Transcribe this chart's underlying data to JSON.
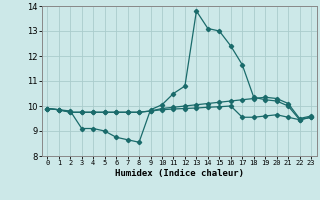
{
  "title": "",
  "xlabel": "Humidex (Indice chaleur)",
  "ylabel": "",
  "xlim": [
    -0.5,
    23.5
  ],
  "ylim": [
    8,
    14
  ],
  "yticks": [
    8,
    9,
    10,
    11,
    12,
    13,
    14
  ],
  "xticks": [
    0,
    1,
    2,
    3,
    4,
    5,
    6,
    7,
    8,
    9,
    10,
    11,
    12,
    13,
    14,
    15,
    16,
    17,
    18,
    19,
    20,
    21,
    22,
    23
  ],
  "background_color": "#cce8e8",
  "grid_color": "#aacccc",
  "line_color": "#1a6b6b",
  "line1_x": [
    0,
    1,
    2,
    3,
    4,
    5,
    6,
    7,
    8,
    9,
    10,
    11,
    12,
    13,
    14,
    15,
    16,
    17,
    18,
    19,
    20,
    21,
    22,
    23
  ],
  "line1_y": [
    9.9,
    9.85,
    9.8,
    9.1,
    9.1,
    9.0,
    8.75,
    8.65,
    8.55,
    9.85,
    10.05,
    10.5,
    10.8,
    13.8,
    13.1,
    13.0,
    12.4,
    11.65,
    10.35,
    10.25,
    10.2,
    10.0,
    9.45,
    9.55
  ],
  "line2_x": [
    0,
    1,
    2,
    3,
    4,
    5,
    6,
    7,
    8,
    9,
    10,
    11,
    12,
    13,
    14,
    15,
    16,
    17,
    18,
    19,
    20,
    21,
    22,
    23
  ],
  "line2_y": [
    9.9,
    9.85,
    9.75,
    9.75,
    9.75,
    9.75,
    9.75,
    9.75,
    9.75,
    9.8,
    9.9,
    9.95,
    10.0,
    10.05,
    10.1,
    10.15,
    10.2,
    10.25,
    10.3,
    10.35,
    10.3,
    10.1,
    9.5,
    9.6
  ],
  "line3_x": [
    0,
    1,
    2,
    3,
    4,
    5,
    6,
    7,
    8,
    9,
    10,
    11,
    12,
    13,
    14,
    15,
    16,
    17,
    18,
    19,
    20,
    21,
    22,
    23
  ],
  "line3_y": [
    9.9,
    9.85,
    9.75,
    9.75,
    9.75,
    9.75,
    9.75,
    9.75,
    9.75,
    9.8,
    9.85,
    9.88,
    9.9,
    9.92,
    9.95,
    9.97,
    10.0,
    9.55,
    9.55,
    9.6,
    9.65,
    9.55,
    9.45,
    9.55
  ]
}
